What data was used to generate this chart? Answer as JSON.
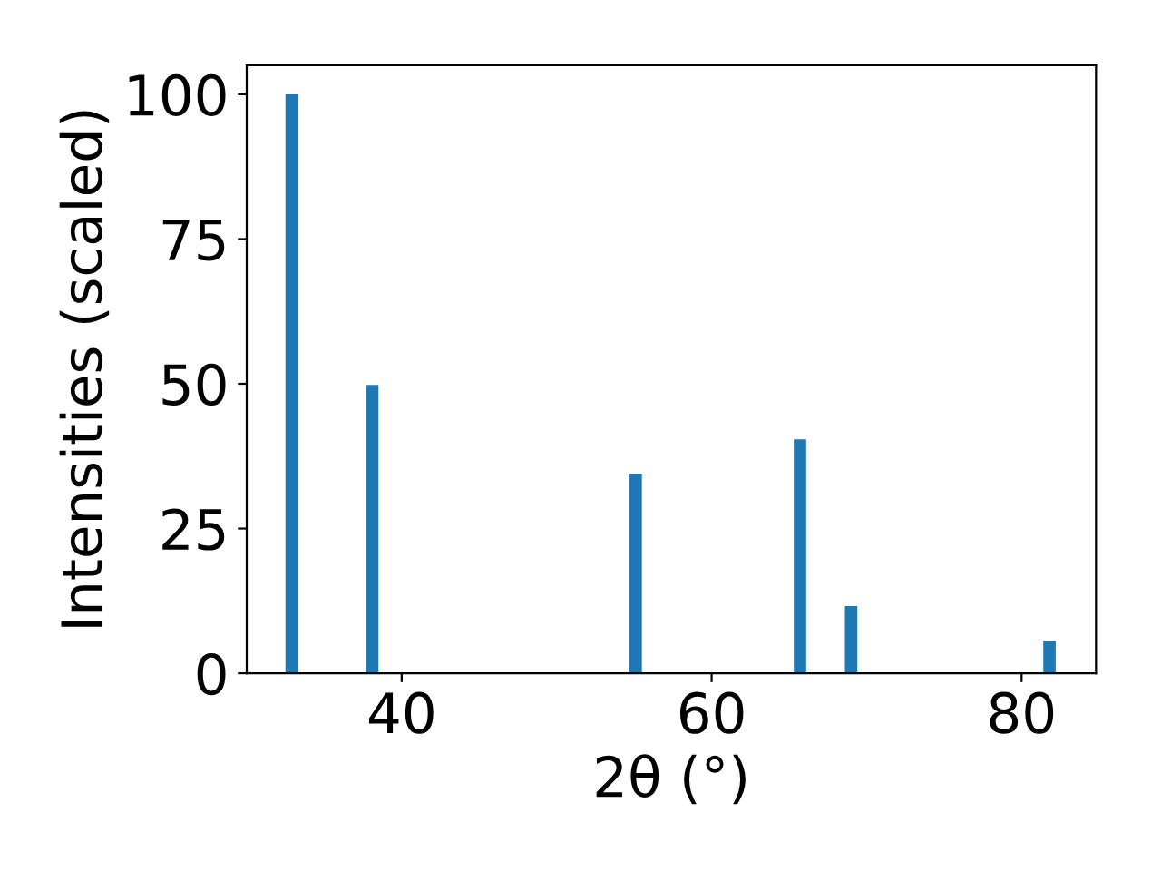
{
  "chart_data": {
    "type": "bar",
    "xlabel": "2θ (°)",
    "ylabel": "Intensities (scaled)",
    "x": [
      32.9,
      38.1,
      55.1,
      65.7,
      69.0,
      81.8
    ],
    "values": [
      100,
      49.8,
      34.5,
      40.4,
      11.6,
      5.6
    ],
    "color": "#1f77b4",
    "xlim": [
      30.0,
      84.8
    ],
    "xticks": [
      40,
      60,
      80
    ],
    "ylim": [
      0,
      105
    ],
    "yticks": [
      0,
      25,
      50,
      75,
      100
    ],
    "grid": false
  }
}
